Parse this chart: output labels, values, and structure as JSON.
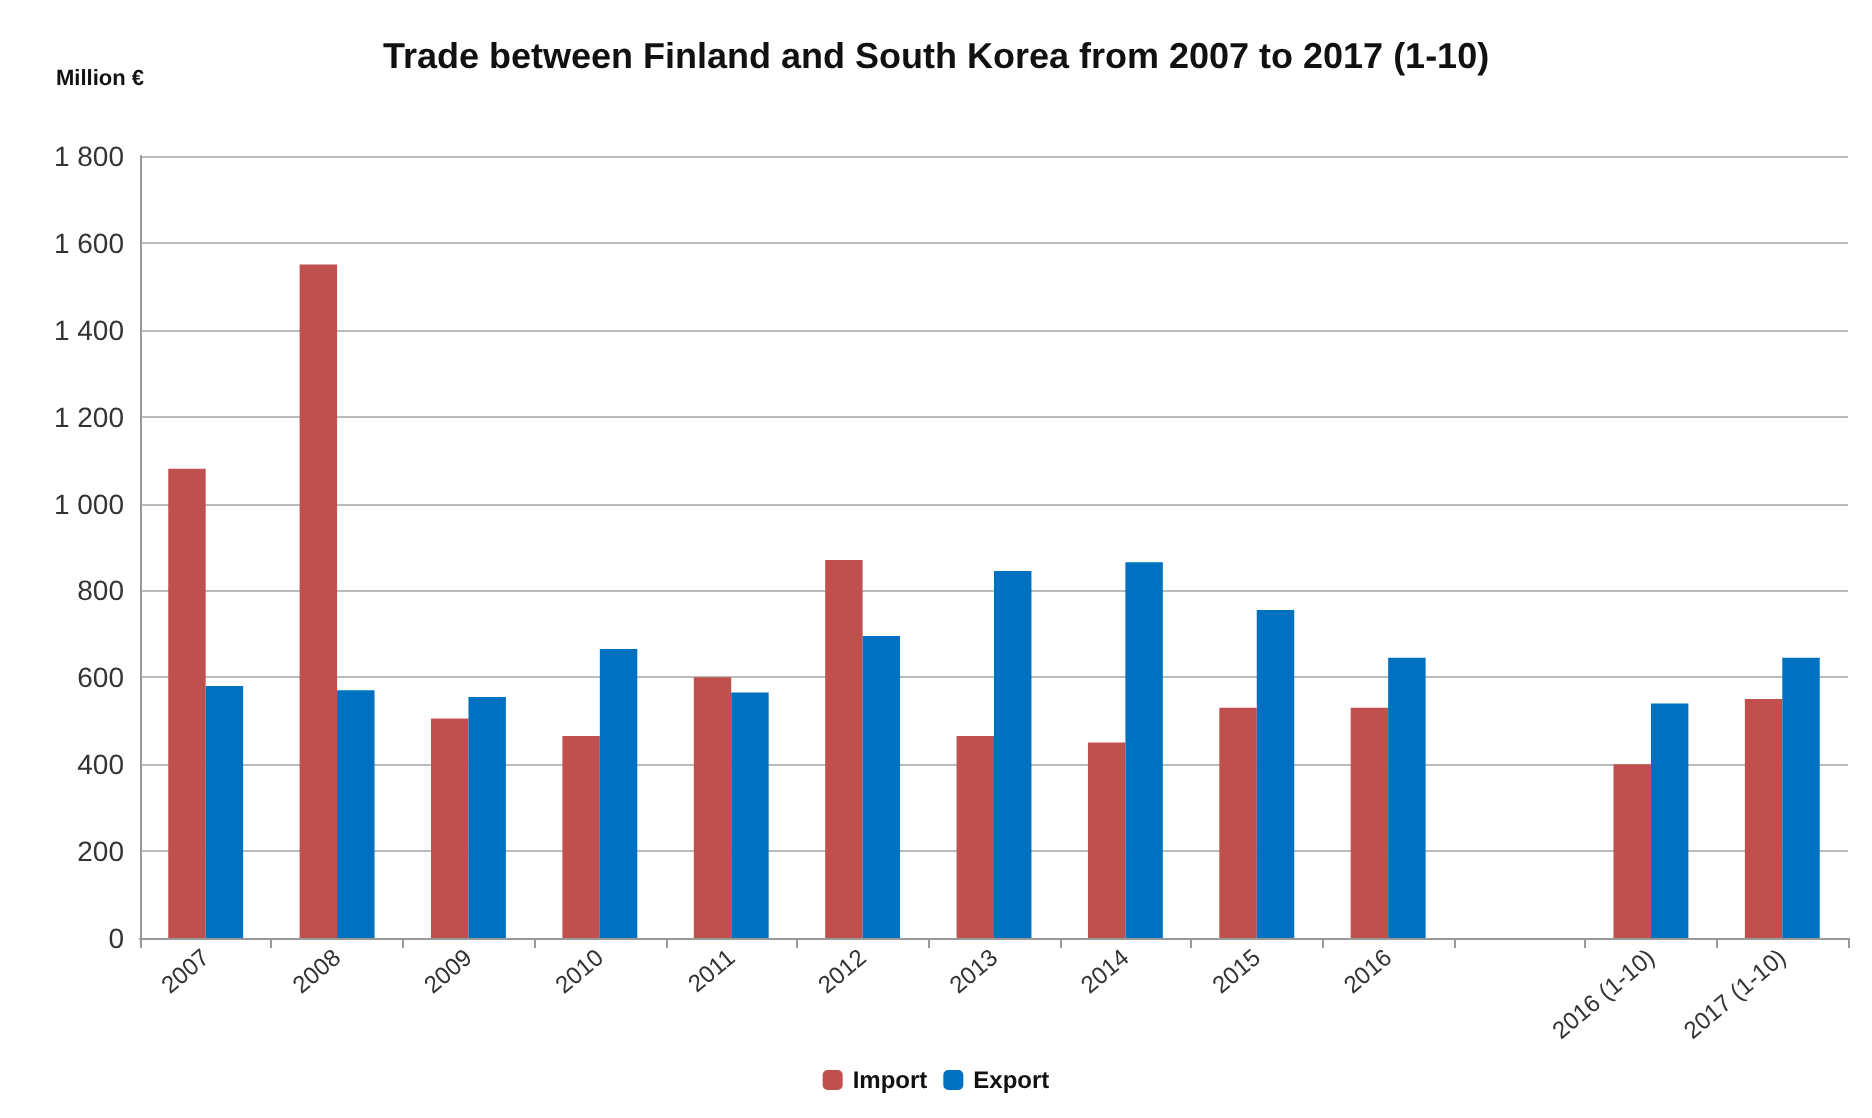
{
  "chart_data": {
    "type": "bar",
    "title": "Trade between Finland and South Korea from 2007 to 2017 (1-10)",
    "ylabel": "Million €",
    "categories": [
      "2007",
      "2008",
      "2009",
      "2010",
      "2011",
      "2012",
      "2013",
      "2014",
      "2015",
      "2016",
      null,
      "2016 (1-10)",
      "2017 (1-10)"
    ],
    "series": [
      {
        "name": "Import",
        "color": "#c0504d",
        "values": [
          1080,
          1550,
          505,
          465,
          600,
          870,
          465,
          450,
          530,
          530,
          null,
          400,
          550
        ]
      },
      {
        "name": "Export",
        "color": "#0070c0",
        "values": [
          580,
          570,
          555,
          665,
          565,
          695,
          845,
          865,
          755,
          645,
          null,
          540,
          645
        ]
      }
    ],
    "ylim": [
      0,
      1800
    ],
    "yticks": [
      0,
      200,
      400,
      600,
      800,
      {
        "value": 1000,
        "label": "1 000"
      },
      {
        "value": 1200,
        "label": "1 200"
      },
      {
        "value": 1400,
        "label": "1 400"
      },
      {
        "value": 1600,
        "label": "1 600"
      },
      {
        "value": 1800,
        "label": "1 800"
      }
    ],
    "grid": "y",
    "legend": "bottom"
  }
}
